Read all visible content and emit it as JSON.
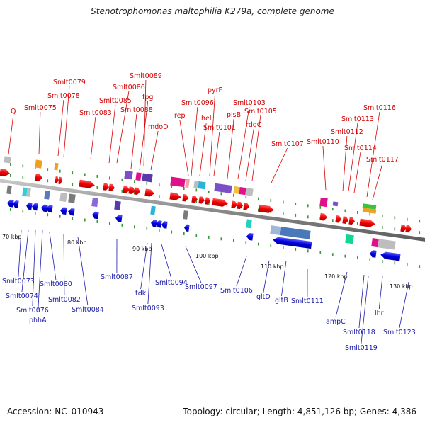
{
  "title": "Stenotrophomonas maltophilia K279a, complete genome",
  "footer": {
    "accession": "Accession: NC_010943",
    "topology": "Topology: circular; Length: 4,851,126 bp; Genes: 4,386"
  },
  "colors": {
    "forward_gene": "#ee0000",
    "reverse_gene": "#0000dd",
    "backbone": "#888888",
    "label_forward": "#d40000",
    "label_reverse": "#1a1aa8",
    "tick": "#3a9a3a"
  },
  "scale_labels": [
    "70 kbp",
    "80 kbp",
    "90 kbp",
    "100 kbp",
    "110 kbp",
    "120 kbp",
    "130 kbp"
  ],
  "forward_labels": [
    "Q",
    "Smlt0075",
    "Smlt0078",
    "Smlt0079",
    "Smlt0083",
    "Smlt0085",
    "Smlt0086",
    "Smlt0088",
    "fpg",
    "Smlt0089",
    "mdoD",
    "rep",
    "Smlt0096",
    "hel",
    "pyrF",
    "Smlt0101",
    "plsB",
    "Smlt0103",
    "rdgC",
    "Smlt0105",
    "Smlt0107",
    "Smlt0110",
    "Smlt0112",
    "Smlt0113",
    "Smlt0114",
    "Smlt0116",
    "Smlt0117"
  ],
  "reverse_labels": [
    "Smlt0073",
    "Smlt0074",
    "Smlt0076",
    "phhA",
    "Smlt0080",
    "Smlt0082",
    "Smlt0084",
    "Smlt0087",
    "tdk",
    "Smlt0093",
    "Smlt0094",
    "Smlt0097",
    "Smlt0106",
    "gltD",
    "gltB",
    "Smlt0111",
    "ampC",
    "Smlt0118",
    "Smlt0119",
    "lhr",
    "Smlt0123"
  ]
}
